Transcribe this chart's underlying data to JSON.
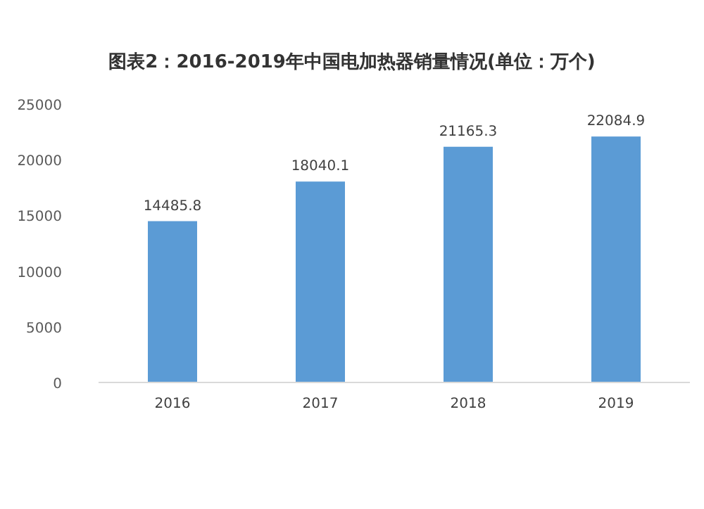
{
  "chart_data": {
    "type": "bar",
    "title": "图表2：2016-2019年中国电加热器销量情况(单位：万个)",
    "categories": [
      "2016",
      "2017",
      "2018",
      "2019"
    ],
    "values": [
      14485.8,
      18040.1,
      21165.3,
      22084.9
    ],
    "color": "#5b9bd5",
    "ylim": [
      0,
      25000
    ],
    "yticks": [
      0,
      5000,
      10000,
      15000,
      20000,
      25000
    ],
    "data_labels": true
  }
}
